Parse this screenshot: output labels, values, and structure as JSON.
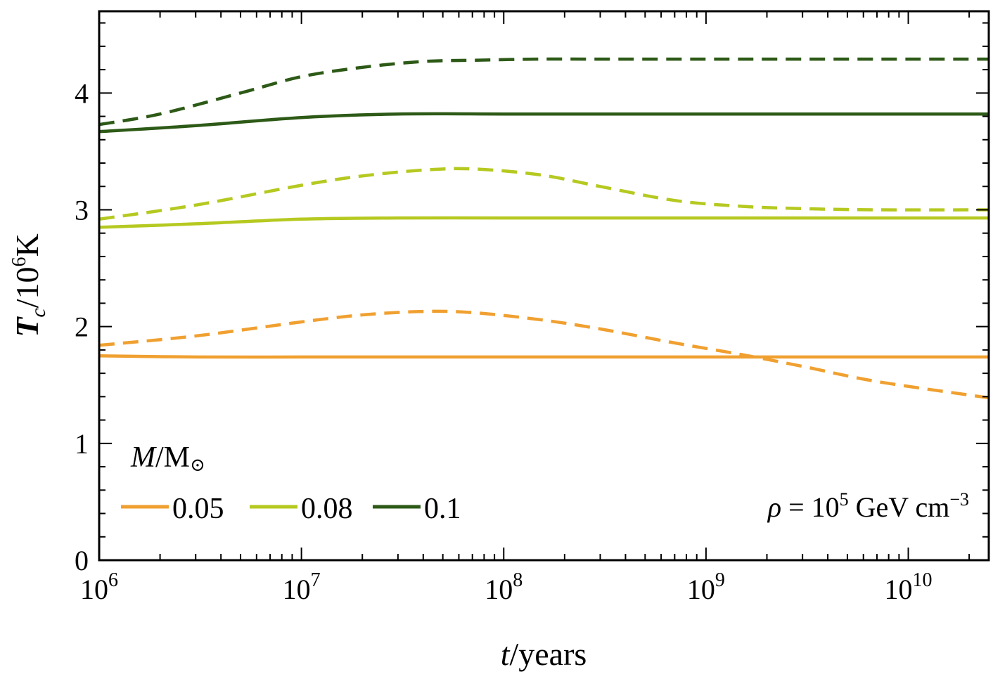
{
  "chart_data": {
    "type": "line",
    "xscale": "log",
    "xlim": [
      1000000,
      25000000000
    ],
    "ylim": [
      0,
      4.7
    ],
    "xlabel": "t/years",
    "ylabel": "Tc/10⁶K",
    "x_ticks": [
      {
        "value": 1000000,
        "base": "10",
        "exp": "6"
      },
      {
        "value": 10000000,
        "base": "10",
        "exp": "7"
      },
      {
        "value": 100000000,
        "base": "10",
        "exp": "8"
      },
      {
        "value": 1000000000,
        "base": "10",
        "exp": "9"
      },
      {
        "value": 10000000000,
        "base": "10",
        "exp": "10"
      }
    ],
    "y_ticks": [
      {
        "value": 0,
        "label": "0"
      },
      {
        "value": 1,
        "label": "1"
      },
      {
        "value": 2,
        "label": "2"
      },
      {
        "value": 3,
        "label": "3"
      },
      {
        "value": 4,
        "label": "4"
      }
    ],
    "legend_title": "M/M⊙",
    "legend_position": "bottom-left",
    "annotation": "ρ = 10⁵ GeV cm⁻³",
    "grid": false,
    "series": [
      {
        "name": "0.05",
        "style": "solid",
        "color": "#f0a030",
        "x": [
          1000000,
          3000000,
          10000000,
          30000000,
          100000000,
          300000000,
          1000000000,
          3000000000,
          10000000000,
          25000000000
        ],
        "y": [
          1.75,
          1.74,
          1.74,
          1.74,
          1.74,
          1.74,
          1.74,
          1.74,
          1.74,
          1.74
        ]
      },
      {
        "style": "dashed",
        "color": "#f0a030",
        "x": [
          1000000,
          3000000,
          10000000,
          20000000,
          40000000,
          70000000,
          150000000,
          300000000,
          700000000,
          1500000000,
          3000000000,
          7000000000,
          25000000000
        ],
        "y": [
          1.84,
          1.92,
          2.04,
          2.1,
          2.13,
          2.12,
          2.06,
          1.98,
          1.86,
          1.76,
          1.66,
          1.53,
          1.39
        ]
      },
      {
        "name": "0.08",
        "style": "solid",
        "color": "#b5c920",
        "x": [
          1000000,
          3000000,
          10000000,
          30000000,
          100000000,
          300000000,
          1000000000,
          3000000000,
          10000000000,
          25000000000
        ],
        "y": [
          2.85,
          2.88,
          2.92,
          2.93,
          2.93,
          2.93,
          2.93,
          2.93,
          2.93,
          2.93
        ]
      },
      {
        "style": "dashed",
        "color": "#b5c920",
        "x": [
          1000000,
          3000000,
          10000000,
          20000000,
          40000000,
          70000000,
          150000000,
          300000000,
          700000000,
          1500000000,
          3000000000,
          7000000000,
          25000000000
        ],
        "y": [
          2.92,
          3.04,
          3.21,
          3.29,
          3.34,
          3.35,
          3.3,
          3.2,
          3.08,
          3.03,
          3.01,
          3.0,
          3.0
        ]
      },
      {
        "name": "0.1",
        "style": "solid",
        "color": "#2d5a17",
        "x": [
          1000000,
          3000000,
          10000000,
          30000000,
          100000000,
          300000000,
          1000000000,
          3000000000,
          10000000000,
          25000000000
        ],
        "y": [
          3.67,
          3.72,
          3.79,
          3.82,
          3.82,
          3.82,
          3.82,
          3.82,
          3.82,
          3.82
        ]
      },
      {
        "style": "dashed",
        "color": "#2d5a17",
        "x": [
          1000000,
          2000000,
          5000000,
          10000000,
          20000000,
          40000000,
          70000000,
          150000000,
          300000000,
          1000000000,
          3000000000,
          10000000000,
          25000000000
        ],
        "y": [
          3.73,
          3.82,
          4.0,
          4.14,
          4.22,
          4.27,
          4.28,
          4.29,
          4.29,
          4.29,
          4.29,
          4.29,
          4.29
        ]
      }
    ]
  }
}
